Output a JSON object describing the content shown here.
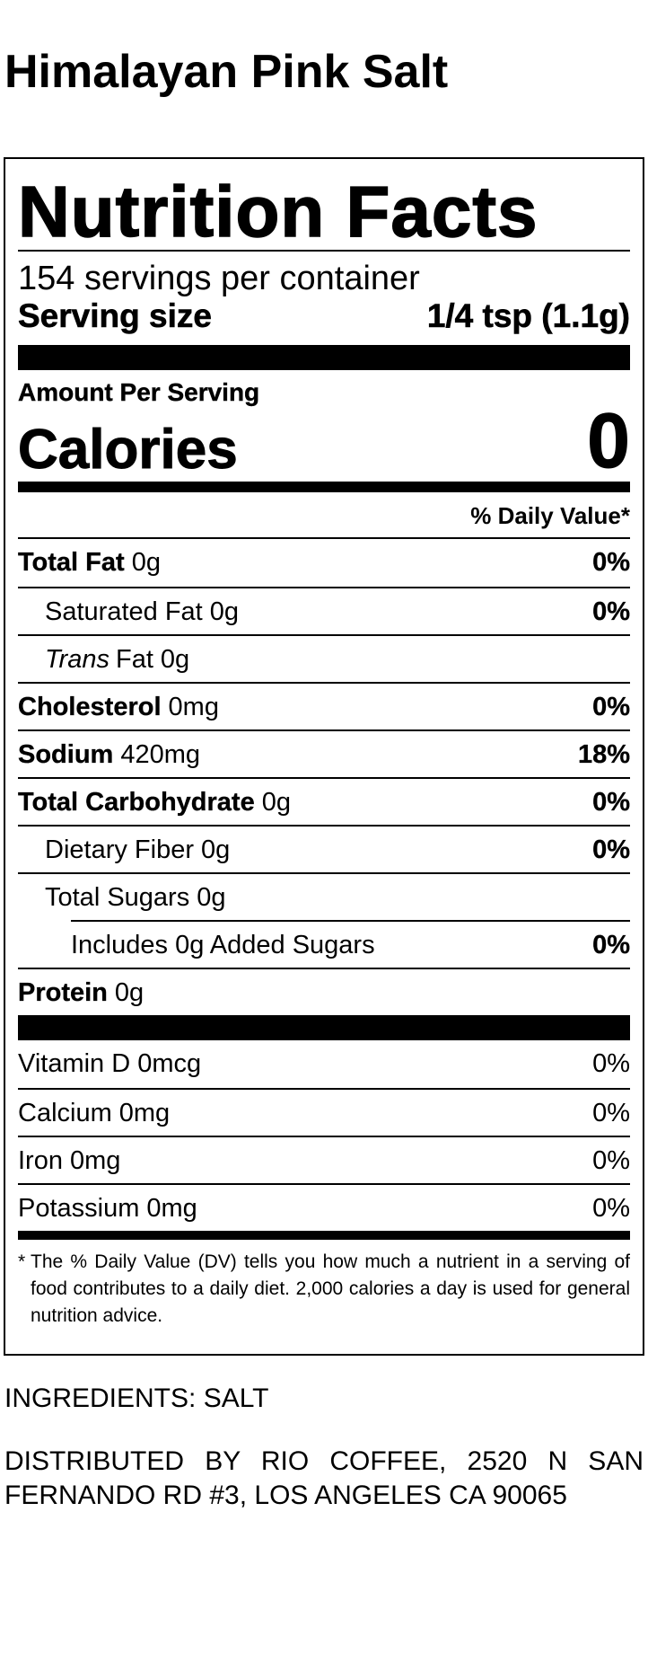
{
  "title": "Himalayan Pink Salt",
  "label": {
    "heading": "Nutrition Facts",
    "servings": "154 servings per container",
    "serving_size_label": "Serving size",
    "serving_size": "1/4 tsp (1.1g)",
    "amount_per_serving": "Amount Per Serving",
    "calories_label": "Calories",
    "calories": "0",
    "daily_value_header": "% Daily Value*",
    "nutrients": [
      {
        "name": "Total Fat",
        "amount": "0g",
        "dv": "0%",
        "bold": true,
        "indent": 0
      },
      {
        "name": "Saturated Fat",
        "amount": "0g",
        "dv": "0%",
        "bold": false,
        "indent": 1
      },
      {
        "italic": "Trans",
        "name": "Fat",
        "amount": "0g",
        "bold": false,
        "indent": 1
      },
      {
        "name": "Cholesterol",
        "amount": "0mg",
        "dv": "0%",
        "bold": true,
        "indent": 0
      },
      {
        "name": "Sodium",
        "amount": "420mg",
        "dv": "18%",
        "bold": true,
        "indent": 0
      },
      {
        "name": "Total Carbohydrate",
        "amount": "0g",
        "dv": "0%",
        "bold": true,
        "indent": 0
      },
      {
        "name": "Dietary Fiber",
        "amount": "0g",
        "dv": "0%",
        "bold": false,
        "indent": 1
      },
      {
        "name": "Total Sugars",
        "amount": "0g",
        "bold": false,
        "indent": 1
      },
      {
        "name": "Includes 0g Added Sugars",
        "dv": "0%",
        "bold": false,
        "indent": 2
      },
      {
        "name": "Protein",
        "amount": "0g",
        "bold": true,
        "indent": 0
      }
    ],
    "vitamins": [
      {
        "name": "Vitamin D",
        "amount": "0mcg",
        "dv": "0%"
      },
      {
        "name": "Calcium",
        "amount": "0mg",
        "dv": "0%"
      },
      {
        "name": "Iron",
        "amount": "0mg",
        "dv": "0%"
      },
      {
        "name": "Potassium",
        "amount": "0mg",
        "dv": "0%"
      }
    ],
    "footnote_mark": "*",
    "footnote": "The % Daily Value (DV) tells you how much a nutrient in a serving of food contributes to a daily diet. 2,000 calories a day is used for general nutrition advice."
  },
  "ingredients": "INGREDIENTS: SALT",
  "distributor": "DISTRIBUTED BY RIO COFFEE, 2520 N SAN FERNANDO RD #3, LOS ANGELES CA 90065"
}
